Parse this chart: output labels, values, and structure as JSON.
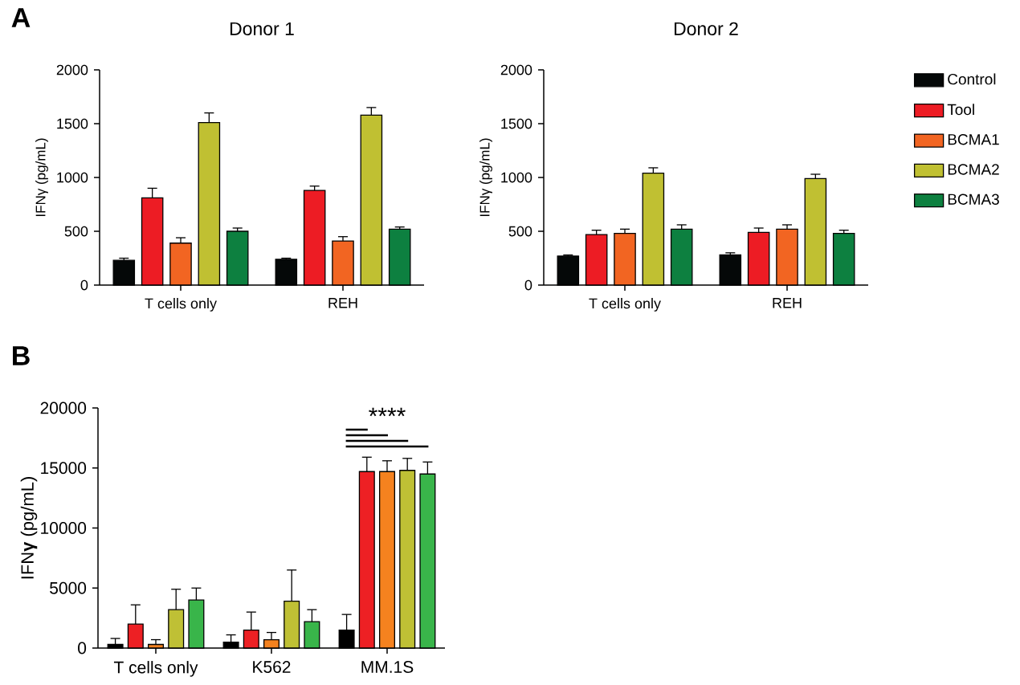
{
  "chart_data": [
    {
      "type": "bar",
      "title": "Donor 1",
      "ylabel": "IFNγ (pg/mL)",
      "categories": [
        "T cells only",
        "REH"
      ],
      "ylim": [
        0,
        2000
      ],
      "yticks": [
        0,
        500,
        1000,
        1500,
        2000
      ],
      "annotations": [
        "A"
      ],
      "series": [
        {
          "color": "#050808",
          "values": [
            230,
            240
          ],
          "errors": [
            [
              230,
              250
            ],
            [
              240,
              250
            ]
          ]
        },
        {
          "color": "#ed1c24",
          "values": [
            810,
            880
          ],
          "errors": [
            [
              810,
              900
            ],
            [
              880,
              920
            ]
          ]
        },
        {
          "color": "#f26522",
          "values": [
            390,
            410
          ],
          "errors": [
            [
              390,
              440
            ],
            [
              410,
              450
            ]
          ]
        },
        {
          "color": "#c0c032",
          "values": [
            1510,
            1580
          ],
          "errors": [
            [
              1510,
              1600
            ],
            [
              1580,
              1650
            ]
          ]
        },
        {
          "color": "#0d8040",
          "values": [
            500,
            520
          ],
          "errors": [
            [
              500,
              530
            ],
            [
              520,
              540
            ]
          ]
        }
      ]
    },
    {
      "type": "bar",
      "title": "Donor 2",
      "ylabel": "IFNγ (pg/mL)",
      "categories": [
        "T cells only",
        "REH"
      ],
      "ylim": [
        0,
        2000
      ],
      "yticks": [
        0,
        500,
        1000,
        1500,
        2000
      ],
      "legend": "right",
      "series": [
        {
          "name": "Control",
          "color": "#050808",
          "values": [
            270,
            280
          ],
          "errors": [
            [
              270,
              280
            ],
            [
              280,
              300
            ]
          ]
        },
        {
          "name": "Tool",
          "color": "#ed1c24",
          "values": [
            470,
            490
          ],
          "errors": [
            [
              470,
              510
            ],
            [
              490,
              530
            ]
          ]
        },
        {
          "name": "BCMA1",
          "color": "#f26522",
          "values": [
            480,
            520
          ],
          "errors": [
            [
              480,
              520
            ],
            [
              520,
              560
            ]
          ]
        },
        {
          "name": "BCMA2",
          "color": "#c0c032",
          "values": [
            1040,
            990
          ],
          "errors": [
            [
              1040,
              1090
            ],
            [
              990,
              1030
            ]
          ]
        },
        {
          "name": "BCMA3",
          "color": "#0d8040",
          "values": [
            520,
            480
          ],
          "errors": [
            [
              520,
              560
            ],
            [
              480,
              510
            ]
          ]
        }
      ]
    },
    {
      "type": "bar",
      "ylabel": "IFN**γ** (pg/mL)",
      "categories": [
        "T cells only",
        "K562",
        "MM.1S"
      ],
      "ylim": [
        0,
        20000
      ],
      "yticks": [
        0,
        5000,
        10000,
        15000,
        20000
      ],
      "annotations": [
        "B",
        "****"
      ],
      "series": [
        {
          "color": "#000000",
          "values": [
            300,
            500,
            1500
          ],
          "errors": [
            [
              300,
              800
            ],
            [
              500,
              1100
            ],
            [
              1500,
              2800
            ]
          ]
        },
        {
          "color": "#ed2024",
          "values": [
            2000,
            1500,
            14700
          ],
          "errors": [
            [
              2000,
              3600
            ],
            [
              1500,
              3000
            ],
            [
              14700,
              15900
            ]
          ]
        },
        {
          "color": "#f5821f",
          "values": [
            300,
            700,
            14700
          ],
          "errors": [
            [
              300,
              700
            ],
            [
              700,
              1300
            ],
            [
              14700,
              15600
            ]
          ]
        },
        {
          "color": "#bfc035",
          "values": [
            3200,
            3900,
            14800
          ],
          "errors": [
            [
              3200,
              4900
            ],
            [
              3900,
              6500
            ],
            [
              14800,
              15800
            ]
          ]
        },
        {
          "color": "#39b54a",
          "values": [
            4000,
            2200,
            14500
          ],
          "errors": [
            [
              4000,
              5000
            ],
            [
              2200,
              3200
            ],
            [
              14500,
              15500
            ]
          ]
        }
      ]
    }
  ]
}
